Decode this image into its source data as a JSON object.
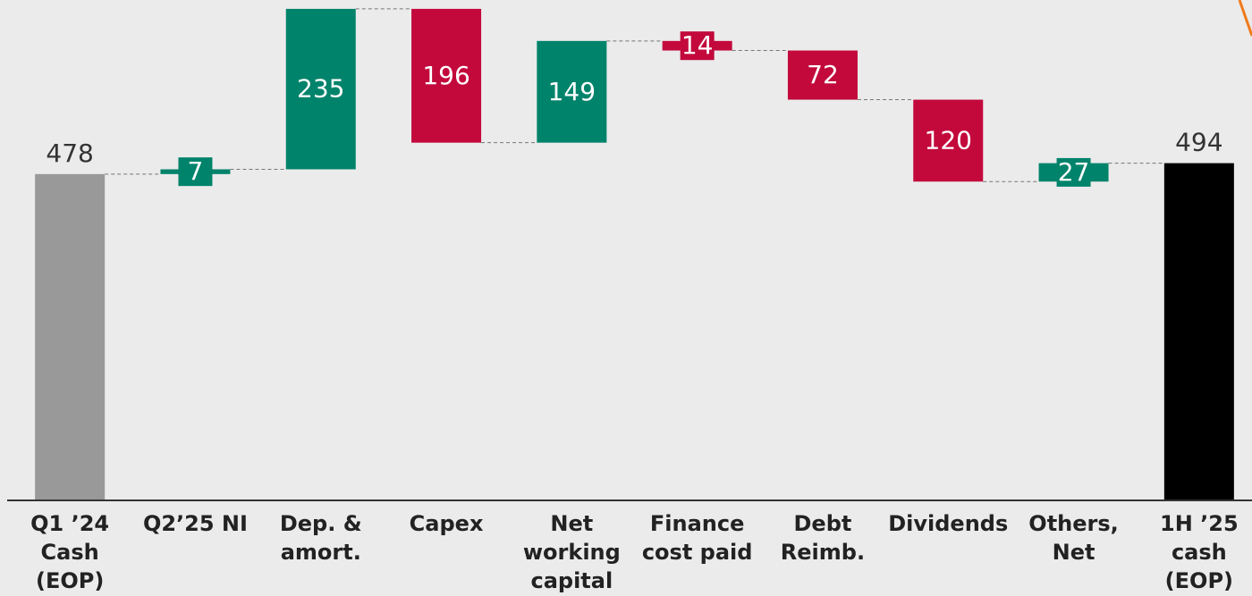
{
  "chart_data": {
    "type": "waterfall",
    "categories": [
      "Q1 ’24 Cash (EOP)",
      "Q2’25 NI",
      "Dep. & amort.",
      "Capex",
      "Net working capital",
      "Finance cost paid",
      "Debt Reimb.",
      "Dividends",
      "Others, Net",
      "1H ’25 cash (EOP)"
    ],
    "values": [
      478,
      7,
      235,
      -196,
      149,
      -14,
      -72,
      -120,
      27,
      494
    ],
    "value_labels": [
      "478",
      "7",
      "235",
      "196",
      "149",
      "14",
      "72",
      "120",
      "27",
      "494"
    ],
    "measure": [
      "absolute",
      "relative",
      "relative",
      "relative",
      "relative",
      "relative",
      "relative",
      "relative",
      "relative",
      "total"
    ],
    "colors": {
      "start": "#999999",
      "increase": "#00836b",
      "decrease": "#c3093c",
      "total": "#000000"
    },
    "ylim": [
      0,
      733
    ]
  }
}
